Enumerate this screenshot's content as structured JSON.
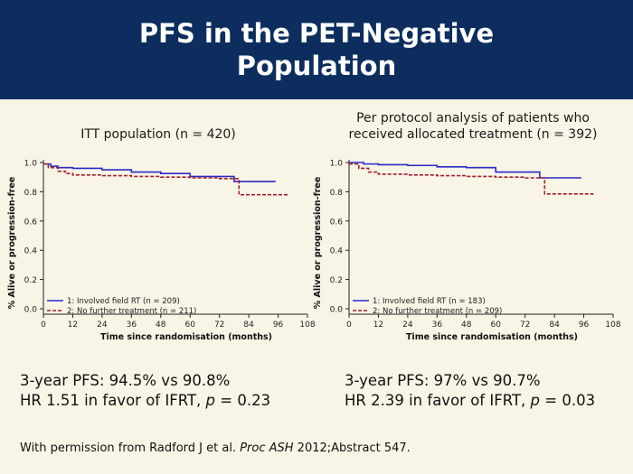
{
  "slide": {
    "title_line1": "PFS in the PET-Negative",
    "title_line2": "Population",
    "credit_prefix": "With permission from Radford J et al. ",
    "credit_journal": "Proc ASH",
    "credit_suffix": " 2012;Abstract 547."
  },
  "colors": {
    "header_bg": "#0d2d5e",
    "series1": "#2a2ac8",
    "series2": "#a0202a",
    "background": "#f8f4e6"
  },
  "panels": [
    {
      "caption_line1": "ITT  population (n = 420)",
      "caption_line2": "",
      "result_line1": "3-year PFS: 94.5% vs 90.8%",
      "result_line2_prefix": "HR 1.51 in favor of IFRT, ",
      "result_line2_p": "p",
      "result_line2_suffix": " = 0.23"
    },
    {
      "caption_line1": "Per protocol analysis of patients who",
      "caption_line2": "received allocated treatment (n = 392)",
      "result_line1": "3-year PFS: 97% vs 90.7%",
      "result_line2_prefix": "HR 2.39 in favor of IFRT, ",
      "result_line2_p": "p",
      "result_line2_suffix": " = 0.03"
    }
  ],
  "chart_data": [
    {
      "type": "line",
      "step": true,
      "xlabel": "Time since randomisation (months)",
      "ylabel": "% Alive or progression-free",
      "xlim": [
        0,
        108
      ],
      "ylim": [
        0,
        1.0
      ],
      "xticks": [
        "0",
        "12",
        "24",
        "36",
        "48",
        "60",
        "72",
        "84",
        "96",
        "108"
      ],
      "yticks": [
        "0.0",
        "0.2",
        "0.4",
        "0.6",
        "0.8",
        "1.0"
      ],
      "legend_position": "bottom-left",
      "series": [
        {
          "name": "1: Involved field RT (n = 209)",
          "color": "#2a2ac8",
          "style": "solid",
          "x": [
            0,
            3,
            6,
            12,
            24,
            36,
            48,
            60,
            78,
            95
          ],
          "y": [
            0.99,
            0.975,
            0.965,
            0.96,
            0.95,
            0.935,
            0.925,
            0.905,
            0.87,
            0.87
          ]
        },
        {
          "name": "2: No further treatment (n = 211)",
          "color": "#a0202a",
          "style": "dashed",
          "x": [
            0,
            2,
            6,
            9,
            12,
            24,
            36,
            48,
            60,
            72,
            78,
            80,
            100
          ],
          "y": [
            0.99,
            0.965,
            0.94,
            0.925,
            0.915,
            0.91,
            0.905,
            0.9,
            0.895,
            0.89,
            0.89,
            0.78,
            0.78
          ]
        }
      ]
    },
    {
      "type": "line",
      "step": true,
      "xlabel": "Time since randomisation (months)",
      "ylabel": "% Alive or progression-free",
      "xlim": [
        0,
        108
      ],
      "ylim": [
        0,
        1.0
      ],
      "xticks": [
        "0",
        "12",
        "24",
        "36",
        "48",
        "60",
        "72",
        "84",
        "96",
        "108"
      ],
      "yticks": [
        "0.0",
        "0.2",
        "0.4",
        "0.6",
        "0.8",
        "1.0"
      ],
      "legend_position": "bottom-left",
      "series": [
        {
          "name": "1: Involved field RT (n = 183)",
          "color": "#2a2ac8",
          "style": "solid",
          "x": [
            0,
            6,
            12,
            24,
            36,
            48,
            60,
            78,
            95
          ],
          "y": [
            1.0,
            0.99,
            0.985,
            0.98,
            0.97,
            0.965,
            0.935,
            0.895,
            0.895
          ]
        },
        {
          "name": "2: No further treatment (n = 209)",
          "color": "#a0202a",
          "style": "dashed",
          "x": [
            0,
            4,
            8,
            12,
            24,
            36,
            48,
            60,
            72,
            80,
            100
          ],
          "y": [
            0.99,
            0.96,
            0.935,
            0.92,
            0.915,
            0.91,
            0.905,
            0.9,
            0.895,
            0.785,
            0.785
          ]
        }
      ]
    }
  ]
}
